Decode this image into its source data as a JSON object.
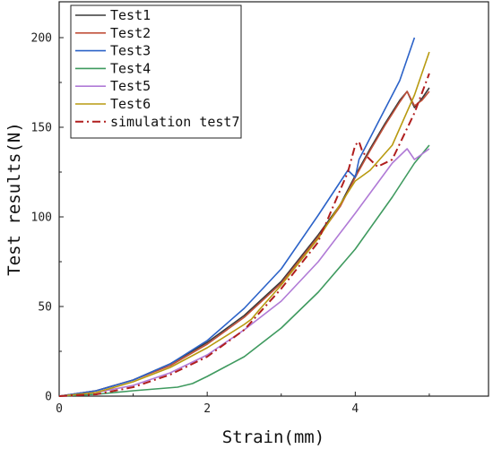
{
  "chart_data": {
    "type": "line",
    "xlabel": "Strain(mm)",
    "ylabel": "Test results(N)",
    "xlim": [
      0,
      5.8
    ],
    "ylim": [
      0,
      220
    ],
    "x_ticks": [
      "0",
      "2",
      "4"
    ],
    "y_ticks": [
      "0",
      "50",
      "100",
      "150",
      "200"
    ],
    "grid": false,
    "legend_position": "top-left",
    "series": [
      {
        "name": "Test1",
        "color": "#3a3a3a",
        "dash": "solid",
        "x": [
          0,
          0.5,
          1,
          1.5,
          2,
          2.5,
          3,
          3.5,
          3.8,
          4,
          4.2,
          4.4,
          4.6,
          4.7,
          4.8,
          4.9,
          5.0
        ],
        "y": [
          0,
          3,
          9,
          18,
          30,
          45,
          64,
          90,
          107,
          123,
          138,
          152,
          165,
          170,
          161,
          166,
          172
        ]
      },
      {
        "name": "Test2",
        "color": "#c0503a",
        "dash": "solid",
        "x": [
          0,
          0.5,
          1,
          1.5,
          2,
          2.5,
          3,
          3.5,
          3.8,
          4,
          4.2,
          4.4,
          4.6,
          4.7,
          4.8,
          4.9,
          5.0
        ],
        "y": [
          0,
          3,
          9,
          17,
          29,
          44,
          63,
          89,
          106,
          122,
          137,
          151,
          164,
          170,
          162,
          165,
          170
        ]
      },
      {
        "name": "Test3",
        "color": "#2b62c8",
        "dash": "solid",
        "x": [
          0,
          0.5,
          1,
          1.5,
          2,
          2.5,
          3,
          3.5,
          3.9,
          4,
          4.05,
          4.3,
          4.6,
          4.8
        ],
        "y": [
          0,
          3,
          9,
          18,
          31,
          49,
          71,
          101,
          126,
          122,
          132,
          152,
          176,
          200
        ]
      },
      {
        "name": "Test4",
        "color": "#3f9a5f",
        "dash": "solid",
        "x": [
          0,
          0.5,
          1,
          1.3,
          1.6,
          1.8,
          2,
          2.5,
          3,
          3.5,
          4,
          4.5,
          4.8,
          4.9,
          5.0
        ],
        "y": [
          0,
          1,
          3,
          4,
          5,
          7,
          11,
          22,
          38,
          58,
          82,
          111,
          130,
          135,
          140
        ]
      },
      {
        "name": "Test5",
        "color": "#b07ad6",
        "dash": "solid",
        "x": [
          0,
          0.5,
          1,
          1.5,
          2,
          2.5,
          3,
          3.5,
          4,
          4.5,
          4.7,
          4.8,
          4.9,
          5.0
        ],
        "y": [
          0,
          2,
          6,
          13,
          23,
          37,
          53,
          75,
          102,
          130,
          138,
          132,
          135,
          138
        ]
      },
      {
        "name": "Test6",
        "color": "#b89a10",
        "dash": "solid",
        "x": [
          0,
          0.5,
          1,
          1.5,
          2,
          2.5,
          2.6,
          2.7,
          3,
          3.5,
          4,
          4.2,
          4.5,
          4.8,
          5.0
        ],
        "y": [
          0,
          2,
          8,
          16,
          27,
          40,
          43,
          48,
          62,
          88,
          120,
          126,
          140,
          168,
          192
        ]
      },
      {
        "name": "simulation test7",
        "color": "#b01e1e",
        "dash": "dashdot",
        "x": [
          0,
          0.5,
          1,
          1.5,
          2,
          2.5,
          3,
          3.5,
          3.55,
          3.6,
          3.9,
          4.0,
          4.05,
          4.1,
          4.3,
          4.5,
          4.8,
          5.0
        ],
        "y": [
          0,
          1,
          5,
          12,
          22,
          37,
          60,
          86,
          92,
          96,
          125,
          140,
          142,
          136,
          128,
          132,
          158,
          180
        ]
      }
    ]
  }
}
